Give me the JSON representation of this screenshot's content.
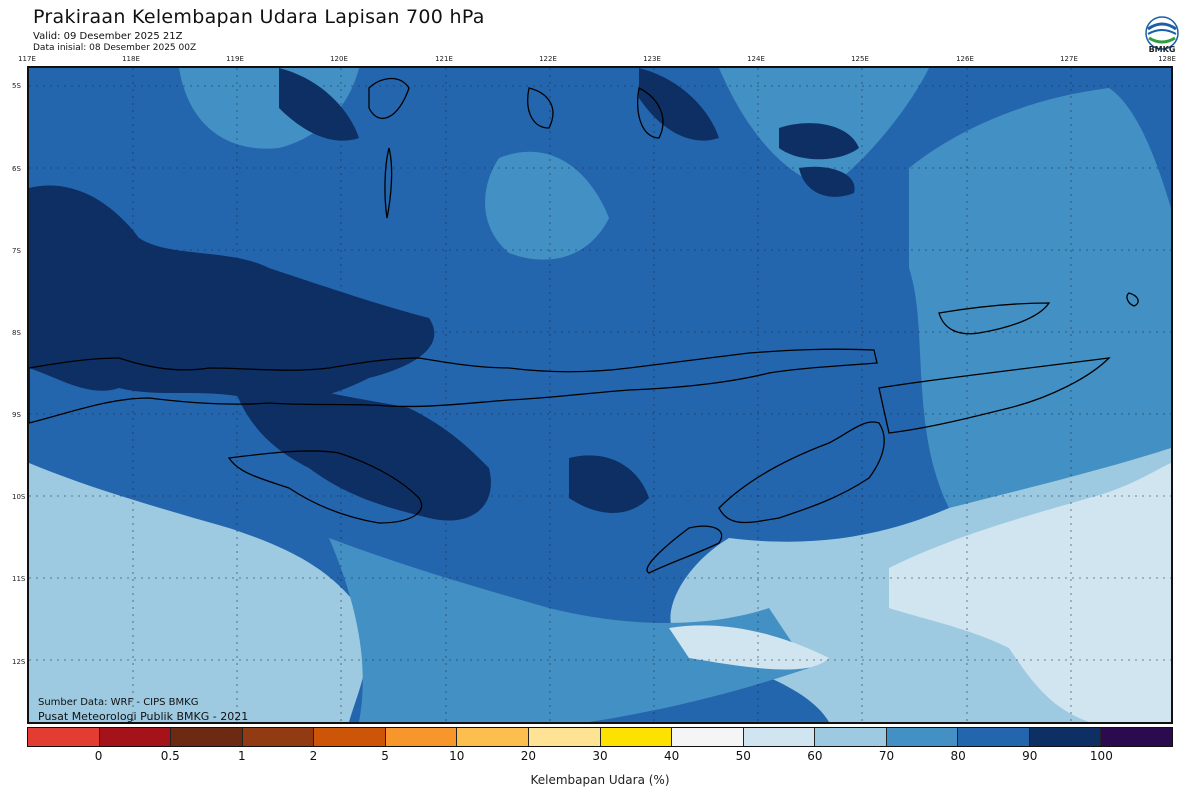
{
  "header": {
    "title": "Prakiraan Kelembapan Udara Lapisan 700 hPa",
    "valid": "Valid: 09 Desember 2025 21Z",
    "initial": "Data inisial: 08 Desember 2025 00Z",
    "logo_text": "BMKG"
  },
  "axes": {
    "lon_labels": [
      "117E",
      "118E",
      "119E",
      "120E",
      "121E",
      "122E",
      "123E",
      "124E",
      "125E",
      "126E",
      "127E",
      "128E"
    ],
    "lat_labels": [
      "5S",
      "6S",
      "7S",
      "8S",
      "9S",
      "10S",
      "11S",
      "12S"
    ]
  },
  "footer": {
    "source": "Sumber Data: WRF - CIPS BMKG",
    "center": "Pusat Meteorologi Publik BMKG - 2021"
  },
  "legend": {
    "title": "Kelembapan Udara (%)",
    "ticks": [
      "0",
      "0.5",
      "1",
      "2",
      "5",
      "10",
      "20",
      "30",
      "40",
      "50",
      "60",
      "70",
      "80",
      "90",
      "100"
    ],
    "colors": [
      "#e33d33",
      "#a4121a",
      "#6d2a12",
      "#923a12",
      "#cc5508",
      "#f7962a",
      "#fcbf4f",
      "#fde393",
      "#fde100",
      "#f5f5f5",
      "#d0e5ef",
      "#9ecae1",
      "#4391c4",
      "#2466ad",
      "#0d2f63",
      "#2b0a4f"
    ]
  },
  "map_colors": {
    "rh_60_70": "#d0e5ef",
    "rh_70_80": "#9ecae1",
    "rh_80_90": "#4391c4",
    "rh_90_95": "#2466ad",
    "rh_95_100": "#0d2f63"
  }
}
